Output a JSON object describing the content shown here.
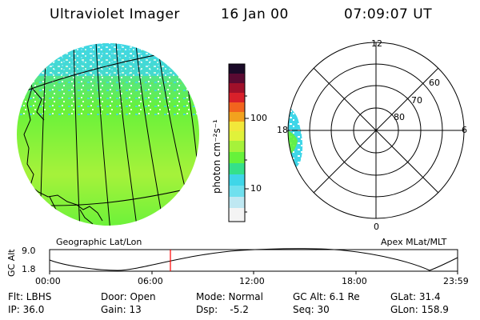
{
  "header": {
    "title": "Ultraviolet Imager",
    "date": "16 Jan 00",
    "time": "07:09:07 UT"
  },
  "colors": {
    "background": "#ffffff",
    "cursor": "#ff0000",
    "colorbar": [
      "#f4f4f4",
      "#bfe8f2",
      "#3fd6e8",
      "#35e08a",
      "#66f23a",
      "#a6f23a",
      "#e0f23a",
      "#f2e83a",
      "#f2a21e",
      "#f2641e",
      "#d8202a",
      "#a0102a",
      "#5a0a32",
      "#1a0a28"
    ]
  },
  "colorbar": {
    "unit_label": "photon cm⁻²s⁻¹",
    "tick_100": "100",
    "tick_10": "10"
  },
  "left_panel": {
    "caption": "Geographic Lat/Lon"
  },
  "right_panel": {
    "caption": "Apex MLat/MLT",
    "mlt_12": "12",
    "mlt_18": "18",
    "mlt_6": "6",
    "mlt_0": "0",
    "lat_60": "60",
    "lat_70": "70",
    "lat_80": "80"
  },
  "altitude_strip": {
    "axis_label": "GC Alt",
    "y_max": "9.0",
    "y_min": "1.8",
    "x_ticks": [
      "00:00",
      "06:00",
      "12:00",
      "18:00",
      "23:59"
    ],
    "cursor_time": "07:09"
  },
  "info": {
    "row1": {
      "flt": "Flt: LBHS",
      "door": "Door: Open",
      "mode": "Mode: Normal",
      "gcalt": "GC Alt: 6.1 Re",
      "glat": "GLat:  31.4"
    },
    "row2": {
      "ip": "IP: 36.0",
      "gain": "Gain: 13",
      "dsp": "Dsp:    -5.2",
      "seq": "Seq: 30",
      "glon": "GLon: 158.9"
    }
  }
}
